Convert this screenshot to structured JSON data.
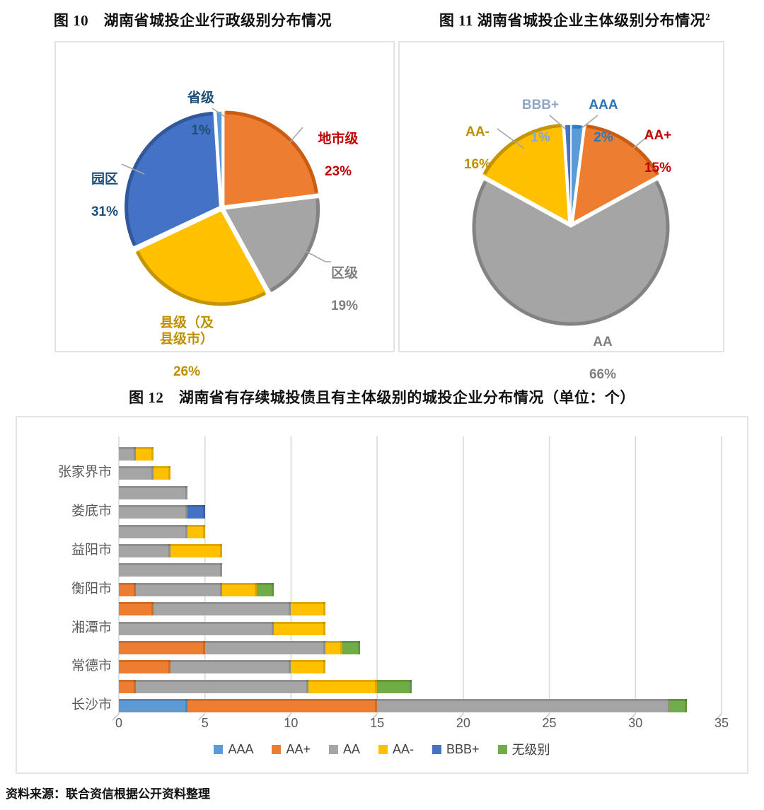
{
  "source_note": "资料来源：联合资信根据公开资料整理",
  "chart_data": [
    {
      "type": "pie",
      "title": "图 10　湖南省城投企业行政级别分布情况",
      "start": "top",
      "direction": "clockwise",
      "slices": [
        {
          "label": "地市级",
          "pct": "23%",
          "value": 23,
          "color": "#ED7D31",
          "rim": "#C55A11",
          "label_color": "#C00000"
        },
        {
          "label": "区级",
          "pct": "19%",
          "value": 19,
          "color": "#A5A5A5",
          "rim": "#7F7F7F",
          "label_color": "#808080"
        },
        {
          "label": "县级（及\n县级市）",
          "pct": "26%",
          "value": 26,
          "color": "#FFC000",
          "rim": "#BF8F00",
          "label_color": "#BF8F00"
        },
        {
          "label": "园区",
          "pct": "31%",
          "value": 31,
          "color": "#4472C4",
          "rim": "#2F5597",
          "label_color": "#1F4E79"
        },
        {
          "label": "省级",
          "pct": "1%",
          "value": 1,
          "color": "#5B9BD5",
          "rim": "#2E75B6",
          "label_color": "#1F4E79"
        }
      ]
    },
    {
      "type": "pie",
      "title": "图 11 湖南省城投企业主体级别分布情况",
      "title_superscript": "2",
      "start": "top",
      "direction": "clockwise",
      "slices": [
        {
          "label": "AAA",
          "pct": "2%",
          "value": 2,
          "color": "#5B9BD5",
          "rim": "#2E75B6",
          "label_color": "#2E75B6"
        },
        {
          "label": "AA+",
          "pct": "15%",
          "value": 15,
          "color": "#ED7D31",
          "rim": "#C55A11",
          "label_color": "#C00000"
        },
        {
          "label": "AA",
          "pct": "66%",
          "value": 66,
          "color": "#A5A5A5",
          "rim": "#7F7F7F",
          "label_color": "#808080"
        },
        {
          "label": "AA-",
          "pct": "16%",
          "value": 16,
          "color": "#FFC000",
          "rim": "#BF8F00",
          "label_color": "#BF8F00"
        },
        {
          "label": "BBB+",
          "pct": "1%",
          "value": 1,
          "color": "#4472C4",
          "rim": "#2F5597",
          "label_color": "#8FA6C4"
        }
      ]
    },
    {
      "type": "bar",
      "orientation": "horizontal",
      "stacked": true,
      "title": "图 12　湖南省有存续城投债且有主体级别的城投企业分布情况（单位：个）",
      "categories": [
        "",
        "张家界市",
        "",
        "娄底市",
        "",
        "益阳市",
        "",
        "衡阳市",
        "",
        "湘潭市",
        "",
        "常德市",
        "",
        "长沙市"
      ],
      "series": [
        {
          "name": "AAA",
          "color": "#5B9BD5",
          "values": [
            0,
            0,
            0,
            0,
            0,
            0,
            0,
            0,
            0,
            0,
            0,
            0,
            0,
            4
          ]
        },
        {
          "name": "AA+",
          "color": "#ED7D31",
          "values": [
            0,
            0,
            0,
            0,
            0,
            0,
            0,
            1,
            2,
            0,
            5,
            3,
            1,
            11
          ]
        },
        {
          "name": "AA",
          "color": "#A5A5A5",
          "values": [
            1,
            2,
            4,
            4,
            4,
            3,
            6,
            5,
            8,
            9,
            7,
            7,
            10,
            17
          ]
        },
        {
          "name": "AA-",
          "color": "#FFC000",
          "values": [
            1,
            1,
            0,
            0,
            1,
            3,
            0,
            2,
            2,
            3,
            1,
            2,
            4,
            0
          ]
        },
        {
          "name": "BBB+",
          "color": "#4472C4",
          "values": [
            0,
            0,
            0,
            1,
            0,
            0,
            0,
            0,
            0,
            0,
            0,
            0,
            0,
            0
          ]
        },
        {
          "name": "无级别",
          "color": "#70AD47",
          "values": [
            0,
            0,
            0,
            0,
            0,
            0,
            0,
            1,
            0,
            0,
            1,
            0,
            2,
            1
          ]
        }
      ],
      "xlim": [
        0,
        35
      ],
      "xticks": [
        "0",
        "5",
        "10",
        "15",
        "20",
        "25",
        "30",
        "35"
      ],
      "legend": [
        "AAA",
        "AA+",
        "AA",
        "AA-",
        "BBB+",
        "无级别"
      ],
      "legend_position": "bottom",
      "gridlines": true
    }
  ]
}
